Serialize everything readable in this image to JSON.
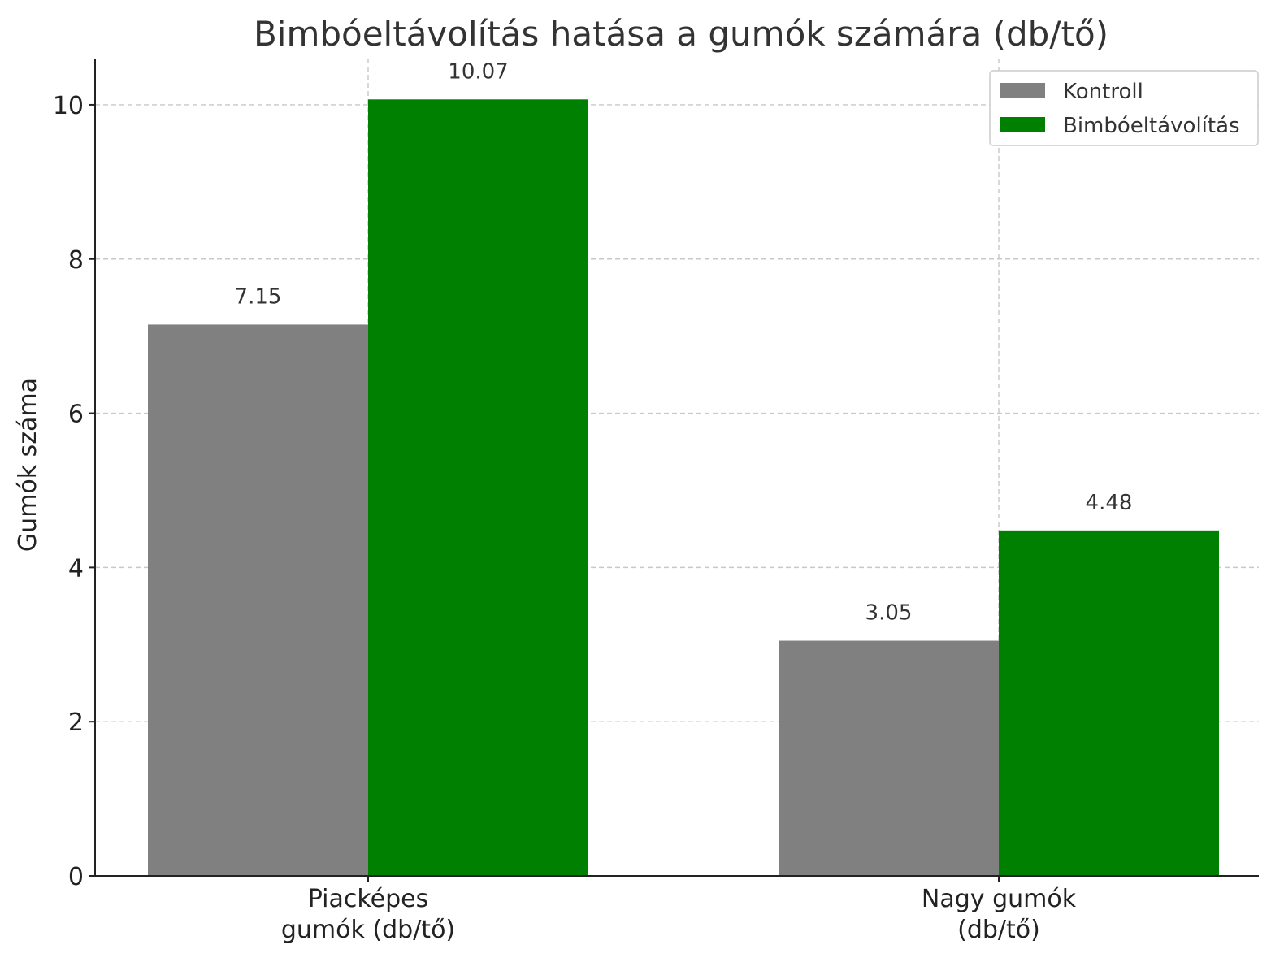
{
  "chart_data": {
    "type": "bar",
    "title": "Bimbóeltávolítás hatása a gumók számára (db/tő)",
    "xlabel": "",
    "ylabel": "Gumók száma",
    "categories": [
      [
        "Piacképes",
        "gumók (db/tő)"
      ],
      [
        "Nagy gumók",
        "(db/tő)"
      ]
    ],
    "series": [
      {
        "name": "Kontroll",
        "values": [
          7.15,
          3.05
        ],
        "labels": [
          "7.15",
          "3.05"
        ],
        "color": "#808080"
      },
      {
        "name": "Bimbóeltávolítás",
        "values": [
          10.07,
          4.48
        ],
        "labels": [
          "10.07",
          "4.48"
        ],
        "color": "#008000"
      }
    ],
    "ylim": [
      0,
      10.6
    ],
    "yticks": [
      0,
      2,
      4,
      6,
      8,
      10
    ],
    "ytick_labels": [
      "0",
      "2",
      "4",
      "6",
      "8",
      "10"
    ],
    "grid": true,
    "legend_position": "top-right"
  }
}
